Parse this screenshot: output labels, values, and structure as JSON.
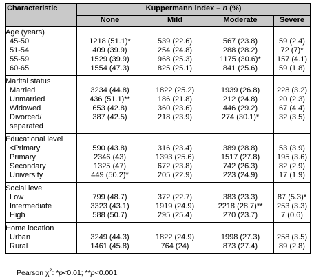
{
  "header": {
    "characteristic": "Characteristic",
    "index_title": "Kuppermann index – ",
    "index_n": "n",
    "index_pct": " (%)",
    "cols": [
      "None",
      "Mild",
      "Moderate",
      "Severe"
    ]
  },
  "groups": [
    {
      "title": "Age (years)",
      "rows": [
        {
          "label": "45-50",
          "none": "1218 (51.1)*",
          "mild": "539 (22.6)",
          "moderate": "567 (23.8)",
          "severe": "59 (2.4)"
        },
        {
          "label": "51-54",
          "none": "409 (39.9)",
          "mild": "254 (24.8)",
          "moderate": "288 (28.2)",
          "severe": "72 (7)*"
        },
        {
          "label": "55-59",
          "none": "1529 (39.9)",
          "mild": "968 (25.3)",
          "moderate": "1175 (30.6)*",
          "severe": "157 (4.1)"
        },
        {
          "label": "60-65",
          "none": "1554 (47.3)",
          "mild": "825 (25.1)",
          "moderate": "841 (25.6)",
          "severe": "59 (1.8)"
        }
      ]
    },
    {
      "title": "Marital status",
      "rows": [
        {
          "label": "Married",
          "none": "3234 (44.8)",
          "mild": "1822 (25.2)",
          "moderate": "1939 (26.8)",
          "severe": "228 (3.2)"
        },
        {
          "label": "Unmarried",
          "none": "436 (51.1)**",
          "mild": "186 (21.8)",
          "moderate": "212 (24.8)",
          "severe": "20 (2.3)"
        },
        {
          "label": "Widowed",
          "none": "653 (42.8)",
          "mild": "360 (23.6)",
          "moderate": "446 (29.2)",
          "severe": "67 (4.4)"
        },
        {
          "label": "Divorced/",
          "label2": "separated",
          "none": "387 (42.5)",
          "mild": "218 (23.9)",
          "moderate": "274 (30.1)*",
          "severe": "32 (3.5)"
        }
      ]
    },
    {
      "title": "Educational level",
      "rows": [
        {
          "label": "<Primary",
          "none": "590 (43.8)",
          "mild": "316 (23.4)",
          "moderate": "389 (28.8)",
          "severe": "53 (3.9)"
        },
        {
          "label": "Primary",
          "none": "2346 (43)",
          "mild": "1393 (25.6)",
          "moderate": "1517 (27.8)",
          "severe": "195 (3.6)"
        },
        {
          "label": "Secondary",
          "none": "1325 (47)",
          "mild": "672 (23.8)",
          "moderate": "742 (26.3)",
          "severe": "82 (2.9)"
        },
        {
          "label": "University",
          "none": "449 (50.2)*",
          "mild": "205 (22.9)",
          "moderate": "223 (24.9)",
          "severe": "17 (1.9)"
        }
      ]
    },
    {
      "title": "Social level",
      "rows": [
        {
          "label": "Low",
          "none": "799 (48.7)",
          "mild": "372 (22.7)",
          "moderate": "383 (23.3)",
          "severe": "87 (5.3)*"
        },
        {
          "label": "Intermediate",
          "none": "3323 (43.1)",
          "mild": "1919 (24.9)",
          "moderate": "2218 (28.7)**",
          "severe": "253 (3.3)"
        },
        {
          "label": "High",
          "none": "588 (50.7)",
          "mild": "295 (25.4)",
          "moderate": "270 (23.7)",
          "severe": "7 (0.6)"
        }
      ]
    },
    {
      "title": "Home location",
      "rows": [
        {
          "label": "Urban",
          "none": "3249 (44.3)",
          "mild": "1822 (24.9)",
          "moderate": "1998 (27.3)",
          "severe": "258 (3.5)"
        },
        {
          "label": "Rural",
          "none": "1461 (45.8)",
          "mild": "764 (24)",
          "moderate": "873 (27.4)",
          "severe": "89 (2.8)"
        }
      ]
    }
  ],
  "footnote": {
    "prefix": "Pearson χ",
    "sup": "2",
    "p1_pre": ": *",
    "p1_var": "p",
    "p1_post": "<0.01; **",
    "p2_var": "p",
    "p2_post": "<0.001."
  }
}
